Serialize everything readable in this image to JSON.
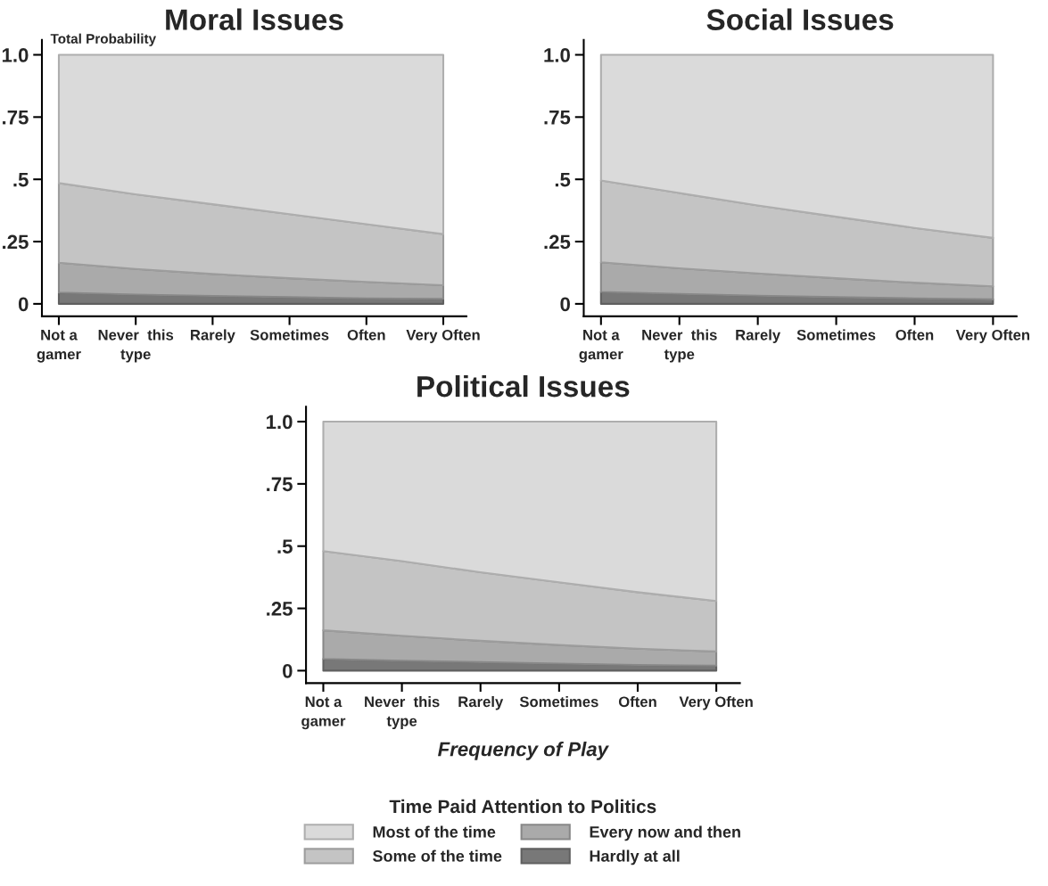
{
  "chart_data": [
    {
      "type": "area",
      "title": "Moral Issues",
      "ylabel": "Total Probability",
      "stacked": true,
      "categories": [
        "Not a\ngamer",
        "Never  this\ntype",
        "Rarely",
        "Sometimes",
        "Often",
        "Very Often"
      ],
      "ylim": [
        -0.05,
        1.06
      ],
      "yticks": [
        0,
        {
          "value": 0.25,
          "label": ".25"
        },
        {
          "value": 0.5,
          "label": ".5"
        },
        {
          "value": 0.75,
          "label": ".75"
        },
        {
          "value": 1,
          "label": "1.0"
        }
      ],
      "series": [
        {
          "color": "#787878",
          "values": [
            0.045,
            0.037,
            0.032,
            0.027,
            0.022,
            0.02
          ]
        },
        {
          "color": "#aaaaaa",
          "values": [
            0.12,
            0.103,
            0.088,
            0.076,
            0.066,
            0.055
          ]
        },
        {
          "color": "#c4c4c4",
          "values": [
            0.32,
            0.3,
            0.28,
            0.257,
            0.232,
            0.205
          ]
        },
        {
          "color": "#dadada",
          "values": [
            0.515,
            0.56,
            0.6,
            0.64,
            0.68,
            0.72
          ]
        }
      ]
    },
    {
      "type": "area",
      "title": "Social Issues",
      "stacked": true,
      "categories": [
        "Not a\ngamer",
        "Never  this\ntype",
        "Rarely",
        "Sometimes",
        "Often",
        "Very Often"
      ],
      "ylim": [
        -0.05,
        1.06
      ],
      "yticks": [
        0,
        {
          "value": 0.25,
          "label": ".25"
        },
        {
          "value": 0.5,
          "label": ".5"
        },
        {
          "value": 0.75,
          "label": ".75"
        },
        {
          "value": 1,
          "label": "1.0"
        }
      ],
      "series": [
        {
          "color": "#787878",
          "values": [
            0.048,
            0.04,
            0.033,
            0.027,
            0.022,
            0.018
          ]
        },
        {
          "color": "#aaaaaa",
          "values": [
            0.119,
            0.103,
            0.089,
            0.076,
            0.063,
            0.052
          ]
        },
        {
          "color": "#c4c4c4",
          "values": [
            0.328,
            0.302,
            0.273,
            0.247,
            0.22,
            0.195
          ]
        },
        {
          "color": "#dadada",
          "values": [
            0.505,
            0.555,
            0.605,
            0.65,
            0.695,
            0.735
          ]
        }
      ]
    },
    {
      "type": "area",
      "title": "Political Issues",
      "xlabel": "Frequency of Play",
      "stacked": true,
      "legend": "bottom",
      "legend_title": "Time Paid Attention to Politics",
      "categories": [
        "Not a\ngamer",
        "Never  this\ntype",
        "Rarely",
        "Sometimes",
        "Often",
        "Very Often"
      ],
      "ylim": [
        -0.05,
        1.06
      ],
      "yticks": [
        0,
        {
          "value": 0.25,
          "label": ".25"
        },
        {
          "value": 0.5,
          "label": ".5"
        },
        {
          "value": 0.75,
          "label": ".75"
        },
        {
          "value": 1,
          "label": "1.0"
        }
      ],
      "series": [
        {
          "name": "Hardly at all",
          "color": "#787878",
          "values": [
            0.047,
            0.04,
            0.034,
            0.028,
            0.023,
            0.02
          ]
        },
        {
          "name": "Every now and then",
          "color": "#aaaaaa",
          "values": [
            0.115,
            0.1,
            0.086,
            0.075,
            0.065,
            0.057
          ]
        },
        {
          "name": "Some of the time",
          "color": "#c4c4c4",
          "values": [
            0.318,
            0.3,
            0.275,
            0.252,
            0.227,
            0.203
          ]
        },
        {
          "name": "Most of the time",
          "color": "#dadada",
          "values": [
            0.52,
            0.56,
            0.605,
            0.645,
            0.685,
            0.72
          ]
        }
      ]
    }
  ]
}
